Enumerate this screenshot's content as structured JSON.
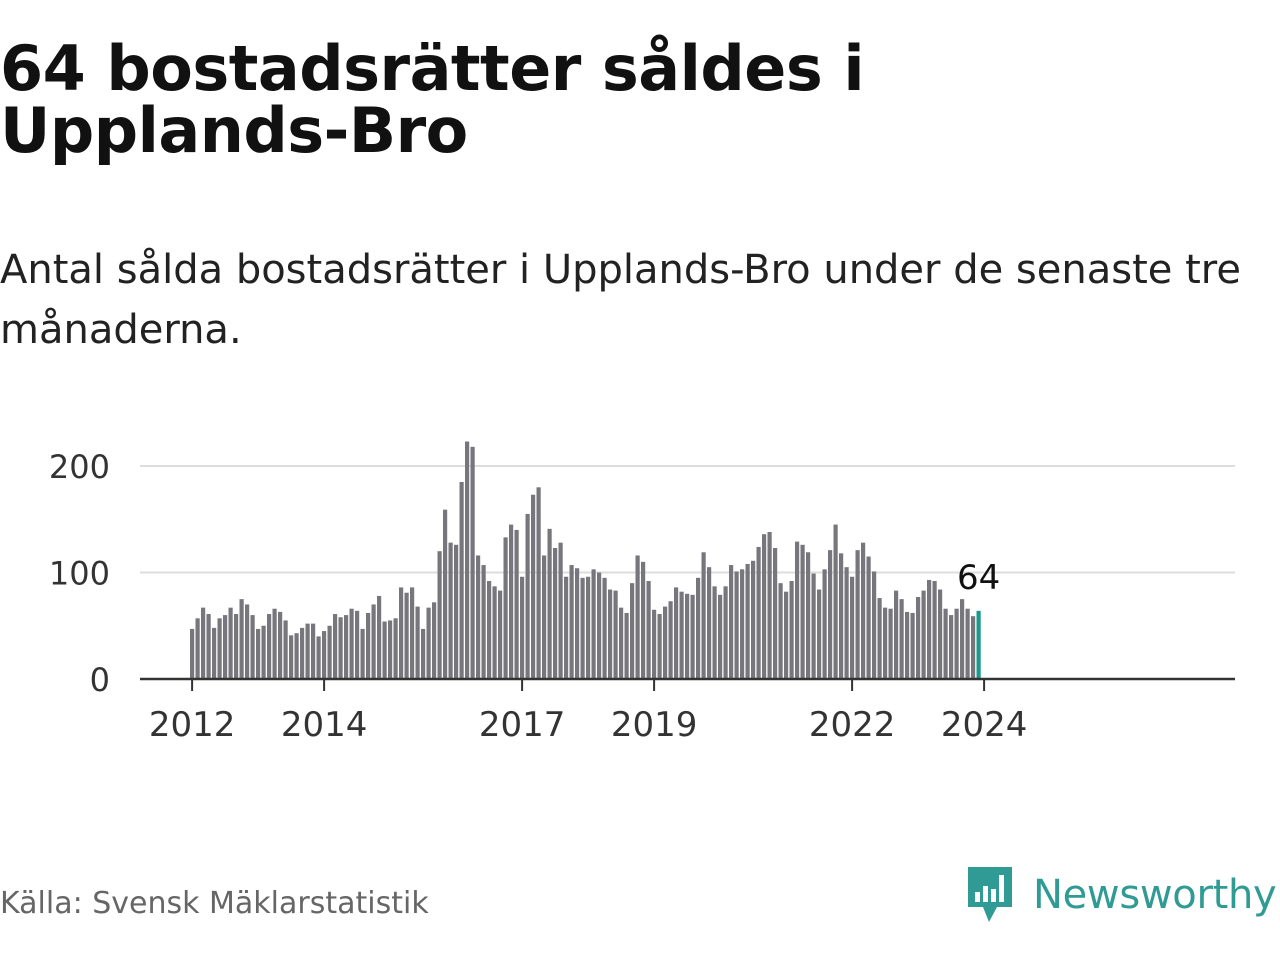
{
  "title": "64 bostadsrätter såldes i Upplands-Bro",
  "subtitle": "Antal sålda bostadsrätter i Upplands-Bro under de senaste tre månaderna.",
  "source": "Källa: Svensk Mäklarstatistik",
  "brand": {
    "name": "Newsworthy",
    "icon": "newsworthy-logo-icon"
  },
  "colors": {
    "bar": "#77767c",
    "highlight": "#1a9a8f",
    "grid": "#dddddd",
    "axis": "#333333",
    "brand": "#2f9b94"
  },
  "chart_data": {
    "type": "bar",
    "title": "Antal sålda bostadsrätter",
    "xlabel": "",
    "ylabel": "",
    "ylim": [
      0,
      200
    ],
    "yticks": [
      0,
      100,
      200
    ],
    "start": "2012-01",
    "xticks": [
      {
        "label": "2012",
        "index": 0
      },
      {
        "label": "2014",
        "index": 24
      },
      {
        "label": "2017",
        "index": 60
      },
      {
        "label": "2019",
        "index": 84
      },
      {
        "label": "2022",
        "index": 120
      },
      {
        "label": "2024",
        "index": 144
      }
    ],
    "series": [
      {
        "name": "Sålda bostadsrätter",
        "values": [
          47,
          57,
          67,
          61,
          48,
          57,
          60,
          67,
          61,
          75,
          70,
          60,
          47,
          50,
          61,
          66,
          63,
          55,
          41,
          43,
          48,
          52,
          52,
          40,
          45,
          50,
          61,
          58,
          60,
          66,
          64,
          47,
          62,
          70,
          78,
          54,
          55,
          57,
          86,
          81,
          86,
          68,
          47,
          67,
          72,
          120,
          159,
          128,
          126,
          185,
          223,
          218,
          116,
          107,
          92,
          87,
          83,
          133,
          145,
          140,
          96,
          155,
          173,
          180,
          116,
          141,
          123,
          128,
          96,
          107,
          104,
          95,
          96,
          103,
          100,
          95,
          84,
          83,
          67,
          62,
          90,
          116,
          110,
          92,
          65,
          61,
          68,
          73,
          86,
          82,
          80,
          79,
          95,
          119,
          105,
          87,
          79,
          87,
          107,
          101,
          103,
          108,
          111,
          124,
          136,
          138,
          123,
          90,
          82,
          92,
          129,
          126,
          119,
          99,
          84,
          103,
          121,
          145,
          118,
          105,
          96,
          121,
          128,
          115,
          101,
          76,
          67,
          66,
          83,
          75,
          63,
          62,
          77,
          83,
          93,
          92,
          84,
          66,
          60,
          66,
          75,
          66,
          59,
          64
        ],
        "highlight_last": true,
        "highlight_label": "64"
      }
    ]
  }
}
